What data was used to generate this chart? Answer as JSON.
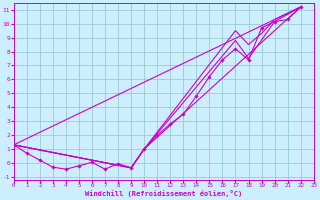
{
  "bg_color": "#cceeff",
  "grid_color": "#99cccc",
  "line_color": "#cc00cc",
  "marker_color": "#cc00cc",
  "xlabel": "Windchill (Refroidissement éolien,°C)",
  "ylabel_ticks": [
    -1,
    0,
    1,
    2,
    3,
    4,
    5,
    6,
    7,
    8,
    9,
    10,
    11
  ],
  "xlabel_ticks": [
    0,
    1,
    2,
    3,
    4,
    5,
    6,
    7,
    8,
    9,
    10,
    11,
    12,
    13,
    14,
    15,
    16,
    17,
    18,
    19,
    20,
    21,
    22,
    23
  ],
  "xlim": [
    0,
    23
  ],
  "ylim": [
    -1.2,
    11.5
  ],
  "line1_x": [
    0,
    1,
    2,
    3,
    4,
    5,
    6,
    7,
    8,
    9,
    10,
    11,
    12,
    13,
    14,
    15,
    16,
    17,
    18,
    19,
    20,
    21,
    22
  ],
  "line1_y": [
    1.3,
    0.7,
    0.2,
    -0.3,
    -0.45,
    -0.2,
    0.05,
    -0.45,
    -0.05,
    -0.35,
    1.0,
    2.0,
    2.8,
    3.5,
    4.8,
    6.2,
    7.4,
    8.2,
    7.4,
    9.7,
    10.15,
    10.3,
    11.2
  ],
  "line2_x": [
    0,
    22
  ],
  "line2_y": [
    1.3,
    11.2
  ],
  "line3_x": [
    0,
    9,
    10,
    22
  ],
  "line3_y": [
    1.3,
    -0.35,
    1.0,
    11.2
  ],
  "line4_x": [
    0,
    9,
    10,
    17,
    18,
    20,
    22
  ],
  "line4_y": [
    1.3,
    -0.35,
    1.0,
    8.8,
    7.5,
    10.15,
    11.2
  ],
  "line5_x": [
    0,
    9,
    10,
    17,
    18,
    19,
    20,
    22
  ],
  "line5_y": [
    1.3,
    -0.35,
    1.0,
    9.5,
    8.5,
    9.3,
    10.3,
    11.2
  ]
}
